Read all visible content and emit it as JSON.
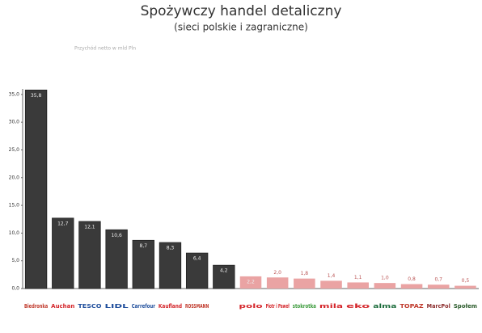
{
  "chart_data": {
    "type": "bar",
    "title": "Spożywczy handel detaliczny",
    "subtitle": "(sieci polskie i zagraniczne)",
    "note": "Przychód netto w mld Pln",
    "categories": [
      "Biedronka",
      "Auchan",
      "TESCO",
      "LIDL",
      "Carrefour",
      "Kaufland",
      "ROSSMANN",
      null,
      "polo",
      "Piotr i Paweł",
      "stokrotka",
      "mila",
      "eko",
      "alma",
      "TOPAZ",
      "MarcPol",
      "Społem"
    ],
    "values": [
      35.8,
      12.7,
      12.1,
      10.6,
      8.7,
      8.3,
      6.4,
      4.2,
      2.2,
      2.0,
      1.8,
      1.4,
      1.1,
      1.0,
      0.8,
      0.7,
      0.5
    ],
    "value_labels": [
      "35,8",
      "12,7",
      "12,1",
      "10,6",
      "8,7",
      "8,3",
      "6,4",
      "4,2",
      "2,2",
      "2,0",
      "1,8",
      "1,4",
      "1,1",
      "1,0",
      "0,8",
      "0,7",
      "0,5"
    ],
    "colors": [
      "#3a3a3a",
      "#3a3a3a",
      "#3a3a3a",
      "#3a3a3a",
      "#3a3a3a",
      "#3a3a3a",
      "#3a3a3a",
      "#3a3a3a",
      "#eaa3a3",
      "#eaa3a3",
      "#eaa3a3",
      "#eaa3a3",
      "#eaa3a3",
      "#eaa3a3",
      "#eaa3a3",
      "#eaa3a3",
      "#eaa3a3"
    ],
    "ylim": [
      0,
      36
    ],
    "yticks": [
      {
        "value": 0,
        "label": "0,0"
      },
      {
        "value": 5,
        "label": "5,0"
      },
      {
        "value": 10,
        "label": "10,0"
      },
      {
        "value": 15,
        "label": "15,0"
      },
      {
        "value": 20,
        "label": "20,0"
      },
      {
        "value": 25,
        "label": "25,0"
      },
      {
        "value": 30,
        "label": "30,0"
      },
      {
        "value": 35,
        "label": "35,0"
      }
    ],
    "grid": false
  }
}
